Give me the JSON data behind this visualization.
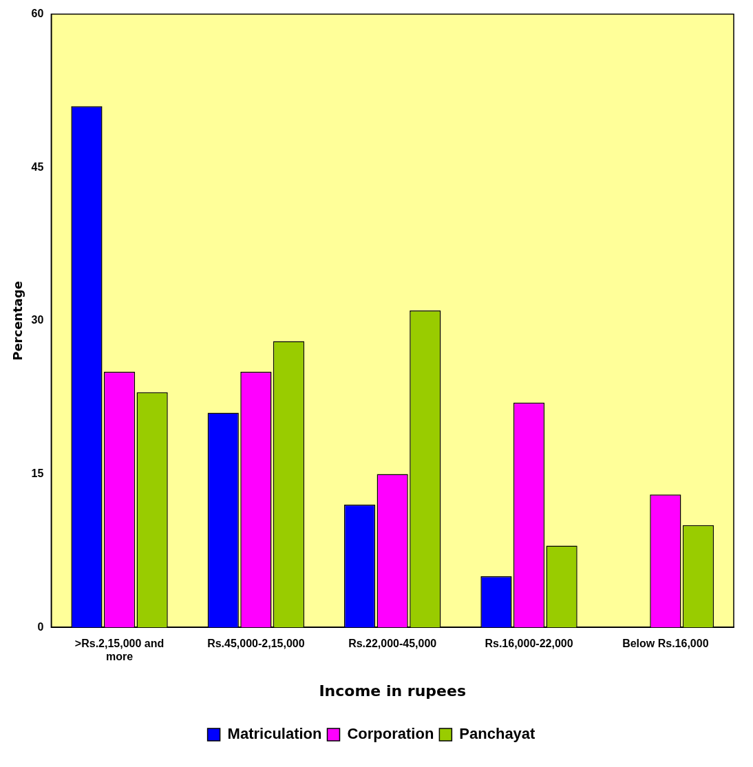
{
  "chart_data": {
    "type": "bar",
    "xlabel": "Income in rupees",
    "ylabel": "Percentage",
    "categories": [
      ">Rs.2,15,000 and more",
      "Rs.45,000-2,15,000",
      "Rs.22,000-45,000",
      "Rs.16,000-22,000",
      "Below Rs.16,000"
    ],
    "series": [
      {
        "name": "Matriculation",
        "color": "#0000ff",
        "values": [
          51,
          21,
          12,
          5,
          0
        ]
      },
      {
        "name": "Corporation",
        "color": "#ff00ff",
        "values": [
          25,
          25,
          15,
          22,
          13
        ]
      },
      {
        "name": "Panchayat",
        "color": "#99cc00",
        "values": [
          23,
          28,
          31,
          8,
          10
        ]
      }
    ],
    "ylim": [
      0,
      60
    ],
    "yticks": [
      0,
      15,
      30,
      45,
      60
    ],
    "grid": false,
    "legend": "bottom"
  }
}
